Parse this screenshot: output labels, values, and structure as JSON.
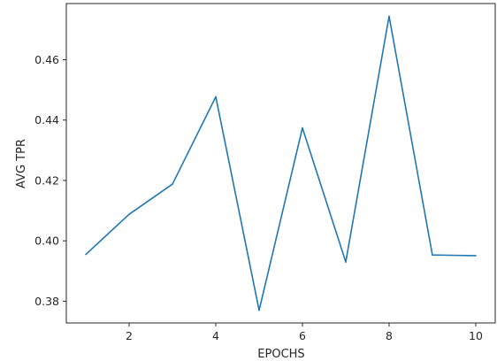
{
  "chart_data": {
    "type": "line",
    "title": "",
    "xlabel": "EPOCHS",
    "ylabel": "AVG TPR",
    "x": [
      1,
      2,
      3,
      4,
      5,
      6,
      7,
      8,
      9,
      10
    ],
    "series": [
      {
        "values": [
          0.3955,
          0.4088,
          0.4188,
          0.4477,
          0.377,
          0.4374,
          0.393,
          0.4744,
          0.3953,
          0.3951
        ],
        "color": "#1f77b4"
      }
    ],
    "xlim": [
      0.55,
      10.45
    ],
    "ylim": [
      0.3728,
      0.4786
    ],
    "xticks": [
      2,
      4,
      6,
      8,
      10
    ],
    "xtick_labels": [
      "2",
      "4",
      "6",
      "8",
      "10"
    ],
    "yticks": [
      0.38,
      0.4,
      0.42,
      0.44,
      0.46
    ],
    "ytick_labels": [
      "0.38",
      "0.40",
      "0.42",
      "0.44",
      "0.46"
    ],
    "grid": false,
    "legend": "none"
  }
}
